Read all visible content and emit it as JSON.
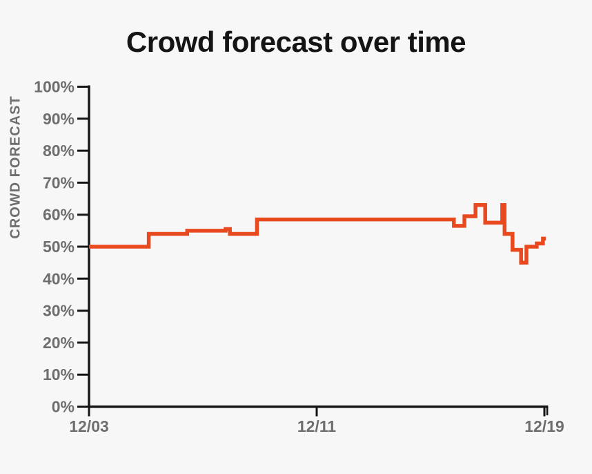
{
  "page": {
    "background_color": "#F7F7F7"
  },
  "chart_data": {
    "type": "line",
    "interpolation": "step-after",
    "title": "Crowd forecast over time",
    "xlabel": "",
    "ylabel": "CROWD FORECAST",
    "ylim": [
      0,
      100
    ],
    "xlim_days": [
      0,
      16.16
    ],
    "grid": false,
    "legend": "none",
    "colors": {
      "line": "#E8491F",
      "axis": "#151515",
      "tick_label": "#6E6E6E",
      "title": "#141414",
      "background": "#F7F7F7"
    },
    "y_ticks": [
      {
        "label": "0%",
        "value": 0
      },
      {
        "label": "10%",
        "value": 10
      },
      {
        "label": "20%",
        "value": 20
      },
      {
        "label": "30%",
        "value": 30
      },
      {
        "label": "40%",
        "value": 40
      },
      {
        "label": "50%",
        "value": 50
      },
      {
        "label": "60%",
        "value": 60
      },
      {
        "label": "70%",
        "value": 70
      },
      {
        "label": "80%",
        "value": 80
      },
      {
        "label": "90%",
        "value": 90
      },
      {
        "label": "100%",
        "value": 100
      }
    ],
    "x_ticks": [
      {
        "label": "12/03",
        "day": 0
      },
      {
        "label": "12/11",
        "day": 8
      },
      {
        "label": "12/19",
        "day": 16
      }
    ],
    "axis_end_day": 16.1,
    "series": [
      {
        "name": "Crowd forecast",
        "color": "#E8491F",
        "units": "percent",
        "points_day_value": [
          [
            0.0,
            50
          ],
          [
            2.1,
            54
          ],
          [
            3.45,
            55
          ],
          [
            4.8,
            55.5
          ],
          [
            4.95,
            54
          ],
          [
            5.9,
            58.5
          ],
          [
            12.82,
            56.5
          ],
          [
            13.19,
            59.5
          ],
          [
            13.58,
            63
          ],
          [
            13.92,
            57.5
          ],
          [
            14.52,
            63
          ],
          [
            14.6,
            54
          ],
          [
            14.88,
            49
          ],
          [
            15.18,
            45
          ],
          [
            15.37,
            50
          ],
          [
            15.73,
            51
          ],
          [
            15.95,
            52.5
          ]
        ],
        "end_day": 16.05
      }
    ]
  }
}
